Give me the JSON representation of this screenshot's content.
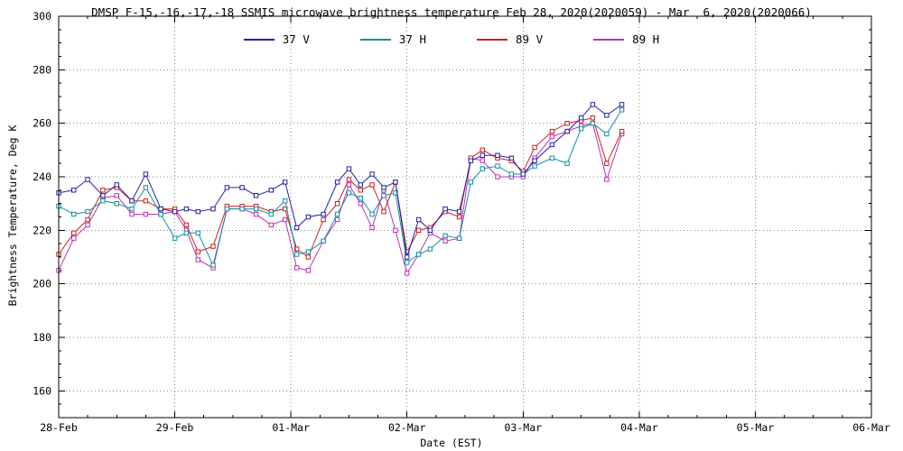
{
  "window": {
    "background": "#ffffff"
  },
  "chart_data": {
    "type": "line",
    "title": "DMSP F-15,-16,-17,-18 SSMIS microwave brightness temperature Feb 28, 2020(2020059) - Mar  6, 2020(2020066)",
    "xlabel": "Date (EST)",
    "ylabel": "Brightness Temperature, Deg K",
    "legend_position": "top",
    "grid": "dotted",
    "axis_color": "#000000",
    "grid_color": "#8a8a8a",
    "xlim_days": [
      0,
      7
    ],
    "ylim": [
      150,
      300
    ],
    "x_tick_days": [
      0,
      1,
      2,
      3,
      4,
      5,
      6,
      7
    ],
    "x_tick_labels": [
      "28-Feb",
      "29-Feb",
      "01-Mar",
      "02-Mar",
      "03-Mar",
      "04-Mar",
      "05-Mar",
      "06-Mar"
    ],
    "y_ticks": [
      160,
      180,
      200,
      220,
      240,
      260,
      280,
      300
    ],
    "x_days": [
      0.0,
      0.13,
      0.25,
      0.38,
      0.5,
      0.63,
      0.75,
      0.88,
      1.0,
      1.1,
      1.2,
      1.33,
      1.45,
      1.58,
      1.7,
      1.83,
      1.95,
      2.05,
      2.15,
      2.28,
      2.4,
      2.5,
      2.6,
      2.7,
      2.8,
      2.9,
      3.0,
      3.1,
      3.2,
      3.33,
      3.45,
      3.55,
      3.65,
      3.78,
      3.9,
      4.0,
      4.1,
      4.25,
      4.38,
      4.5,
      4.6,
      4.72,
      4.85
    ],
    "series": [
      {
        "name": "37 V",
        "color": "#2222aa",
        "values": [
          234,
          235,
          239,
          233,
          237,
          231,
          241,
          228,
          227,
          228,
          227,
          228,
          236,
          236,
          233,
          235,
          238,
          221,
          225,
          226,
          238,
          243,
          237,
          241,
          236,
          238,
          210,
          224,
          220,
          228,
          227,
          246,
          248,
          248,
          247,
          241,
          246,
          252,
          257,
          262,
          267,
          263,
          267
        ]
      },
      {
        "name": "37 H",
        "color": "#1390a0",
        "values": [
          229,
          226,
          227,
          231,
          230,
          228,
          236,
          226,
          217,
          219,
          219,
          207,
          228,
          228,
          228,
          226,
          231,
          211,
          212,
          216,
          226,
          234,
          232,
          226,
          233,
          234,
          208,
          211,
          213,
          218,
          217,
          238,
          243,
          244,
          241,
          241,
          244,
          247,
          245,
          258,
          260,
          256,
          265
        ]
      },
      {
        "name": "89 V",
        "color": "#cc2020",
        "values": [
          211,
          219,
          224,
          235,
          236,
          231,
          231,
          228,
          228,
          222,
          212,
          214,
          229,
          229,
          229,
          227,
          228,
          213,
          210,
          224,
          230,
          239,
          235,
          237,
          227,
          238,
          212,
          220,
          221,
          227,
          225,
          247,
          250,
          247,
          246,
          242,
          251,
          257,
          260,
          261,
          262,
          245,
          257
        ]
      },
      {
        "name": "89 H",
        "color": "#bb30bb",
        "values": [
          205,
          217,
          222,
          232,
          233,
          226,
          226,
          226,
          227,
          220,
          209,
          206,
          228,
          228,
          226,
          222,
          224,
          206,
          205,
          216,
          224,
          237,
          230,
          221,
          235,
          220,
          204,
          211,
          219,
          216,
          217,
          247,
          246,
          240,
          240,
          240,
          247,
          255,
          257,
          259,
          260,
          239,
          256
        ]
      }
    ]
  }
}
